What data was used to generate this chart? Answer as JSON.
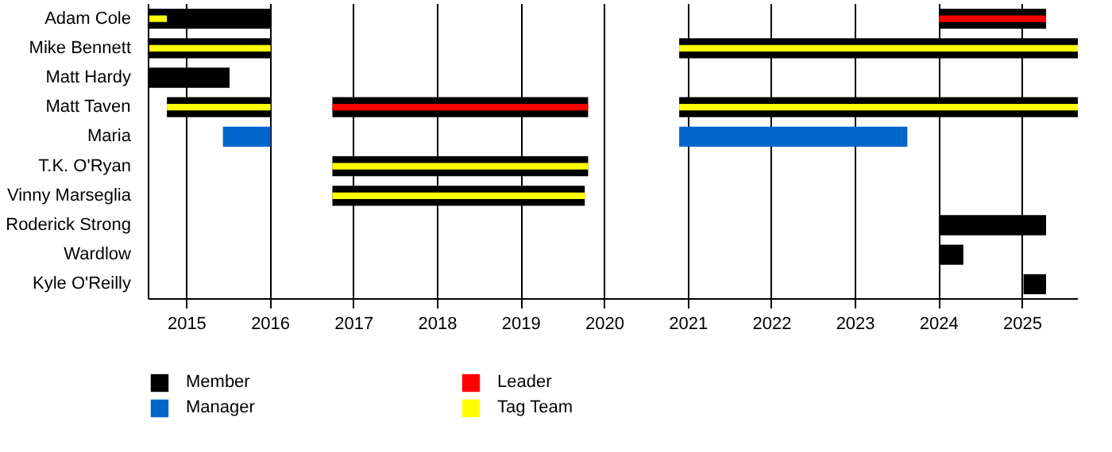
{
  "chart_data": {
    "type": "bar",
    "orientation": "horizontal",
    "categories": [
      "Adam Cole",
      "Mike Bennett",
      "Matt Hardy",
      "Matt Taven",
      "Maria",
      "T.K. O'Ryan",
      "Vinny Marseglia",
      "Roderick Strong",
      "Wardlow",
      "Kyle O'Reilly"
    ],
    "series": [
      {
        "name": "Member",
        "color": "#000000",
        "base": [
          2014.54,
          2014.54,
          2014.54,
          2014.76,
          null,
          2016.74,
          2016.74,
          2024.0,
          2024.0,
          2025.01
        ],
        "values": [
          1.46,
          1.46,
          0.97,
          1.24,
          null,
          3.06,
          3.02,
          1.28,
          0.29,
          0.27
        ]
      },
      {
        "color": "#000000",
        "base": [
          2024.0,
          2020.89,
          null,
          2016.74,
          null,
          null,
          null,
          null,
          null,
          null
        ],
        "values": [
          1.28,
          4.77,
          null,
          3.06,
          null,
          null,
          null,
          null,
          null,
          null
        ]
      },
      {
        "color": "#000000",
        "base": [
          null,
          null,
          null,
          2020.89,
          null,
          null,
          null,
          null,
          null,
          null
        ],
        "values": [
          null,
          null,
          null,
          4.77,
          null,
          null,
          null,
          null,
          null,
          null
        ]
      },
      {
        "name": "Manager",
        "color": "#0066cc",
        "base": [
          null,
          null,
          null,
          null,
          2015.43,
          null,
          null,
          null,
          null,
          null
        ],
        "values": [
          null,
          null,
          null,
          null,
          0.57,
          null,
          null,
          null,
          null,
          null
        ]
      },
      {
        "color": "#0066cc",
        "base": [
          null,
          null,
          null,
          null,
          2020.89,
          null,
          null,
          null,
          null,
          null
        ],
        "values": [
          null,
          null,
          null,
          null,
          2.73,
          null,
          null,
          null,
          null,
          null
        ]
      },
      {
        "name": "Leader",
        "color": "#ff0000",
        "base": [
          2024.0,
          null,
          null,
          2016.74,
          null,
          null,
          null,
          null,
          null,
          null
        ],
        "values": [
          1.28,
          null,
          null,
          3.06,
          null,
          null,
          null,
          null,
          null,
          null
        ]
      },
      {
        "name": "Tag Team",
        "color": "#ffff00",
        "base": [
          2014.54,
          2014.54,
          null,
          2014.76,
          null,
          2016.74,
          2016.74,
          null,
          null,
          null
        ],
        "values": [
          0.22,
          1.46,
          null,
          1.24,
          null,
          3.06,
          3.02,
          null,
          null,
          null
        ]
      },
      {
        "color": "#ffff00",
        "base": [
          null,
          2020.89,
          null,
          2020.89,
          null,
          null,
          null,
          null,
          null,
          null
        ],
        "values": [
          null,
          4.77,
          null,
          4.77,
          null,
          null,
          null,
          null,
          null,
          null
        ]
      }
    ],
    "xlim": [
      2014.54,
      2025.66
    ],
    "xticks": [
      2015,
      2016,
      2017,
      2018,
      2019,
      2020,
      2021,
      2022,
      2023,
      2024,
      2025
    ],
    "grid": "x",
    "legend": "bottom"
  }
}
